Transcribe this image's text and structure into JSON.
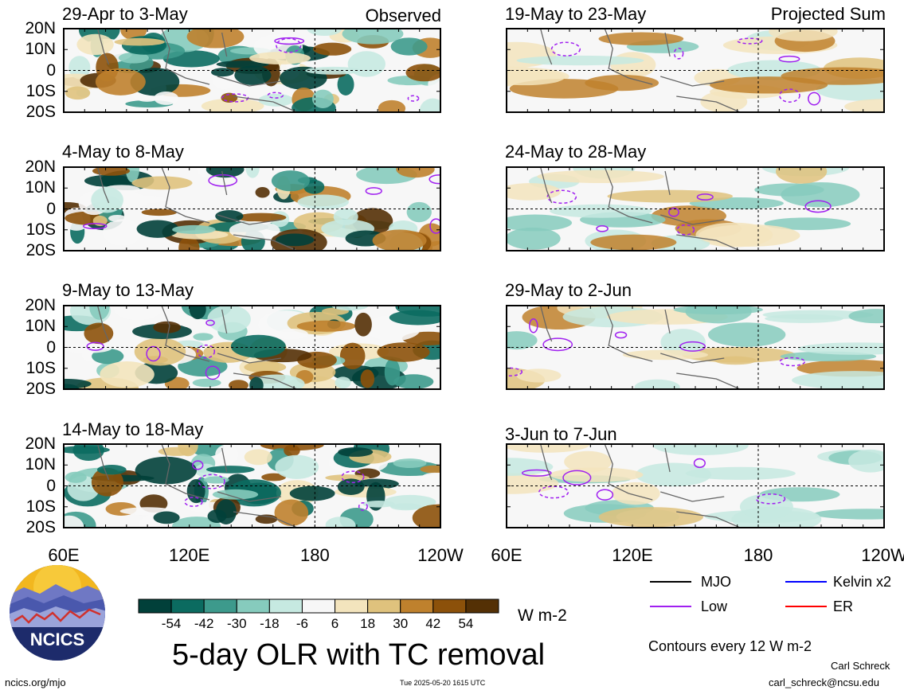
{
  "panels_observed": [
    {
      "title": "29-Apr to 3-May",
      "tag": "Observed"
    },
    {
      "title": "4-May to 8-May",
      "tag": ""
    },
    {
      "title": "9-May to 13-May",
      "tag": ""
    },
    {
      "title": "14-May to 18-May",
      "tag": ""
    }
  ],
  "panels_projected": [
    {
      "title": "19-May to 23-May",
      "tag": "Projected Sum"
    },
    {
      "title": "24-May to 28-May",
      "tag": ""
    },
    {
      "title": "29-May to 2-Jun",
      "tag": ""
    },
    {
      "title": "3-Jun to 7-Jun",
      "tag": ""
    }
  ],
  "lat_labels": [
    "20N",
    "10N",
    "0",
    "10S",
    "20S"
  ],
  "lon_labels": [
    "60E",
    "120E",
    "180",
    "120W"
  ],
  "colorbar": {
    "labels": [
      "-54",
      "-42",
      "-30",
      "-18",
      "-6",
      "6",
      "18",
      "30",
      "42",
      "54"
    ],
    "colors": [
      "#01403a",
      "#0b6b60",
      "#3d9a8c",
      "#86cbbd",
      "#c6e9e1",
      "#f7f7f7",
      "#f3e4bd",
      "#dfc27d",
      "#bf812d",
      "#8c510a",
      "#543005"
    ],
    "units": "W m-2"
  },
  "legend": {
    "mjo": "MJO",
    "kelvin": "Kelvin x2",
    "low": "Low",
    "er": "ER",
    "mjo_color": "#000000",
    "kelvin_color": "#0000ff",
    "low_color": "#a020f0",
    "er_color": "#ff0000",
    "contours_note": "Contours every 12 W m-2"
  },
  "title": "5-day OLR with TC removal",
  "logo_text": "NCICS",
  "url": "ncics.org/mjo",
  "timestamp": "Tue 2025-05-20 1615 UTC",
  "author": "Carl Schreck",
  "email": "carl_schreck@ncsu.edu"
}
